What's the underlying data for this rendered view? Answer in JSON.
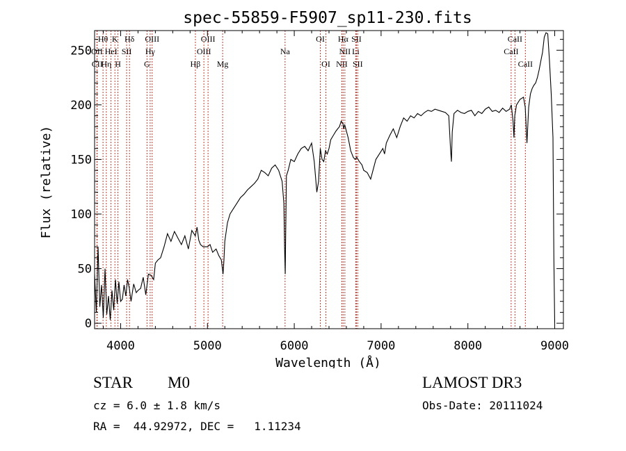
{
  "chart_data": {
    "type": "line",
    "title": "spec-55859-F5907_sp11-230.fits",
    "xlabel": "Wavelength (Å)",
    "ylabel": "Flux (relative)",
    "xlim": [
      3700,
      9100
    ],
    "ylim": [
      -5,
      268
    ],
    "xticks": [
      "4000",
      "5000",
      "6000",
      "7000",
      "8000",
      "9000"
    ],
    "yticks": [
      "0",
      "50",
      "100",
      "150",
      "200",
      "250"
    ],
    "x_tick_values": [
      4000,
      5000,
      6000,
      7000,
      8000,
      9000
    ],
    "y_tick_values": [
      0,
      50,
      100,
      150,
      200,
      250
    ],
    "series": [
      {
        "name": "flux",
        "x": [
          3700,
          3720,
          3740,
          3760,
          3780,
          3800,
          3820,
          3840,
          3860,
          3880,
          3900,
          3920,
          3940,
          3960,
          3980,
          4000,
          4020,
          4040,
          4060,
          4080,
          4100,
          4120,
          4150,
          4180,
          4200,
          4230,
          4260,
          4290,
          4320,
          4350,
          4380,
          4400,
          4430,
          4460,
          4500,
          4540,
          4580,
          4620,
          4660,
          4700,
          4740,
          4780,
          4820,
          4860,
          4880,
          4900,
          4920,
          4950,
          5000,
          5030,
          5060,
          5100,
          5130,
          5160,
          5180,
          5190,
          5200,
          5230,
          5260,
          5300,
          5340,
          5380,
          5420,
          5460,
          5500,
          5540,
          5580,
          5620,
          5660,
          5700,
          5740,
          5780,
          5820,
          5860,
          5880,
          5890,
          5896,
          5900,
          5910,
          5930,
          5960,
          6000,
          6040,
          6080,
          6120,
          6160,
          6200,
          6230,
          6260,
          6280,
          6300,
          6320,
          6340,
          6360,
          6380,
          6400,
          6420,
          6450,
          6480,
          6500,
          6520,
          6540,
          6560,
          6570,
          6580,
          6600,
          6620,
          6650,
          6680,
          6700,
          6720,
          6750,
          6780,
          6800,
          6840,
          6880,
          6900,
          6940,
          6980,
          7020,
          7040,
          7060,
          7100,
          7140,
          7180,
          7220,
          7260,
          7300,
          7340,
          7380,
          7420,
          7460,
          7500,
          7540,
          7580,
          7620,
          7660,
          7700,
          7740,
          7780,
          7800,
          7810,
          7820,
          7840,
          7880,
          7920,
          7960,
          8000,
          8040,
          8080,
          8120,
          8160,
          8200,
          8240,
          8280,
          8320,
          8360,
          8400,
          8440,
          8480,
          8500,
          8520,
          8530,
          8540,
          8560,
          8600,
          8640,
          8660,
          8680,
          8700,
          8720,
          8740,
          8760,
          8780,
          8800,
          8820,
          8840,
          8860,
          8880,
          8900,
          8920,
          8940,
          8960,
          8980,
          8990,
          9000
        ],
        "values": [
          45,
          10,
          70,
          15,
          35,
          5,
          50,
          8,
          25,
          3,
          30,
          12,
          40,
          18,
          38,
          20,
          22,
          35,
          25,
          40,
          32,
          20,
          36,
          28,
          30,
          32,
          42,
          26,
          45,
          44,
          40,
          55,
          58,
          60,
          70,
          82,
          75,
          84,
          78,
          72,
          80,
          68,
          85,
          80,
          88,
          76,
          72,
          70,
          70,
          72,
          65,
          68,
          62,
          58,
          45,
          58,
          75,
          92,
          100,
          105,
          110,
          115,
          118,
          122,
          125,
          128,
          132,
          140,
          138,
          135,
          142,
          145,
          140,
          130,
          110,
          65,
          45,
          75,
          135,
          140,
          150,
          148,
          155,
          160,
          162,
          158,
          165,
          148,
          120,
          130,
          160,
          150,
          148,
          158,
          155,
          160,
          168,
          172,
          176,
          178,
          180,
          185,
          183,
          178,
          182,
          176,
          170,
          158,
          152,
          150,
          152,
          148,
          145,
          140,
          138,
          132,
          138,
          150,
          155,
          160,
          155,
          165,
          172,
          178,
          170,
          180,
          188,
          185,
          190,
          188,
          192,
          190,
          193,
          195,
          194,
          196,
          195,
          194,
          193,
          190,
          160,
          148,
          175,
          192,
          195,
          193,
          192,
          194,
          195,
          190,
          194,
          192,
          196,
          198,
          194,
          195,
          193,
          197,
          194,
          196,
          200,
          185,
          170,
          190,
          200,
          205,
          207,
          198,
          165,
          198,
          210,
          215,
          218,
          220,
          225,
          232,
          240,
          248,
          262,
          266,
          265,
          240,
          210,
          170,
          60,
          0
        ]
      }
    ],
    "line_markers": [
      {
        "label": "Hθ",
        "x": 3797,
        "row": 1
      },
      {
        "label": "OII",
        "x": 3727,
        "row": 2
      },
      {
        "label": "CII",
        "x": 3730,
        "row": 3
      },
      {
        "label": "K",
        "x": 3934,
        "row": 1
      },
      {
        "label": "HeI",
        "x": 3889,
        "row": 2
      },
      {
        "label": "Hη",
        "x": 3835,
        "row": 3
      },
      {
        "label": "SII",
        "x": 4069,
        "row": 2
      },
      {
        "label": "H",
        "x": 3969,
        "row": 3
      },
      {
        "label": "Hδ",
        "x": 4102,
        "row": 1
      },
      {
        "label": "OIII",
        "x": 4363,
        "row": 1
      },
      {
        "label": "Hγ",
        "x": 4340,
        "row": 2
      },
      {
        "label": "G",
        "x": 4304,
        "row": 3
      },
      {
        "label": "OIII",
        "x": 5007,
        "row": 1
      },
      {
        "label": "OIII",
        "x": 4959,
        "row": 2
      },
      {
        "label": "Hβ",
        "x": 4861,
        "row": 3
      },
      {
        "label": "Mg",
        "x": 5175,
        "row": 3
      },
      {
        "label": "Na",
        "x": 5894,
        "row": 2
      },
      {
        "label": "OI",
        "x": 6300,
        "row": 1
      },
      {
        "label": "OI",
        "x": 6364,
        "row": 3
      },
      {
        "label": "Hα",
        "x": 6563,
        "row": 1
      },
      {
        "label": "SII",
        "x": 6716,
        "row": 1
      },
      {
        "label": "NII",
        "x": 6583,
        "row": 2
      },
      {
        "label": "Li",
        "x": 6708,
        "row": 2
      },
      {
        "label": "NII",
        "x": 6548,
        "row": 3
      },
      {
        "label": "SII",
        "x": 6731,
        "row": 3
      },
      {
        "label": "CaII",
        "x": 8542,
        "row": 1
      },
      {
        "label": "CaII",
        "x": 8498,
        "row": 2
      },
      {
        "label": "CaII",
        "x": 8662,
        "row": 3
      }
    ]
  },
  "info": {
    "object_class": "STAR",
    "subclass": "M0",
    "survey": "LAMOST DR3",
    "redshift": "cz = 6.0 ± 1.8 km/s",
    "obs_date": "Obs-Date: 20111024",
    "coords": "RA =  44.92972, DEC =   1.11234"
  },
  "colors": {
    "spectrum": "#000000",
    "marker_line": "#c0392b",
    "axis": "#000000"
  }
}
